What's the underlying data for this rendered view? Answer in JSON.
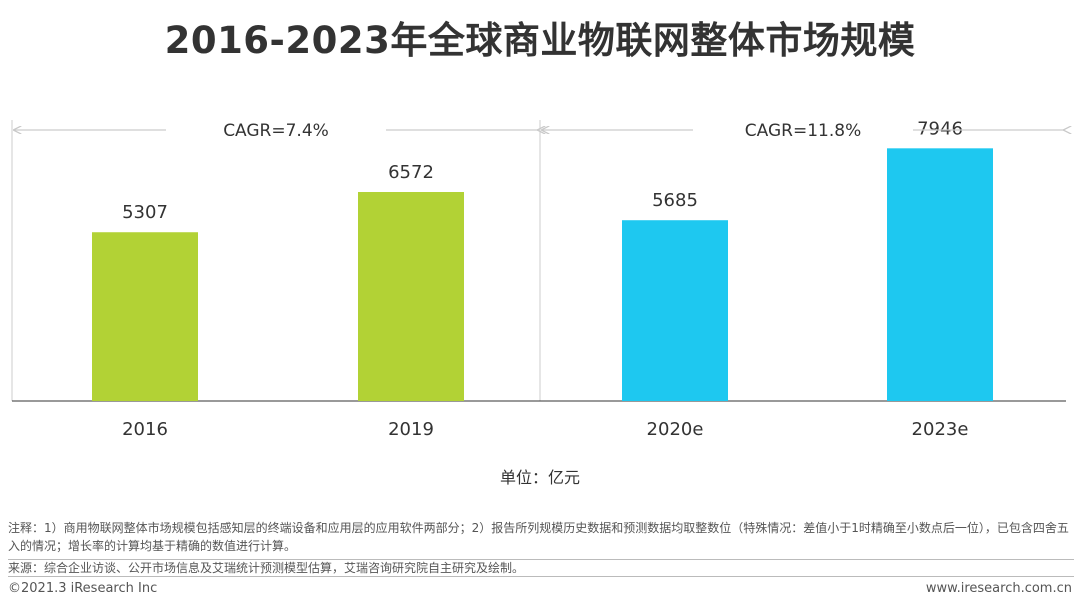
{
  "title": "2016-2023年全球商业物联网整体市场规模",
  "unit_label": "单位：亿元",
  "notes": {
    "line1": "注释：1）商用物联网整体市场规模包括感知层的终端设备和应用层的应用软件两部分；2）报告所列规模历史数据和预测数据均取整数位（特殊情况：差值小于1时精确至小数点后一位），已包含四舍五入的情况；增长率的计算均基于精确的数值进行计算。",
    "line2": "来源：综合企业访谈、公开市场信息及艾瑞统计预测模型估算，艾瑞咨询研究院自主研究及绘制。"
  },
  "footer": {
    "copyright": "©2021.3 iResearch Inc",
    "website": "www.iresearch.com.cn"
  },
  "chart_data": {
    "type": "bar",
    "categories": [
      "2016",
      "2019",
      "2020e",
      "2023e"
    ],
    "values": [
      5307,
      6572,
      5685,
      7946
    ],
    "bar_colors": [
      "#b2d235",
      "#b2d235",
      "#1ec8f0",
      "#1ec8f0"
    ],
    "ylim": [
      0,
      10000
    ],
    "grid": false,
    "annotations": [
      {
        "label": "CAGR=7.4%",
        "from": "2016",
        "to": "2019"
      },
      {
        "label": "CAGR=11.8%",
        "from": "2020e",
        "to": "2023e"
      }
    ]
  }
}
